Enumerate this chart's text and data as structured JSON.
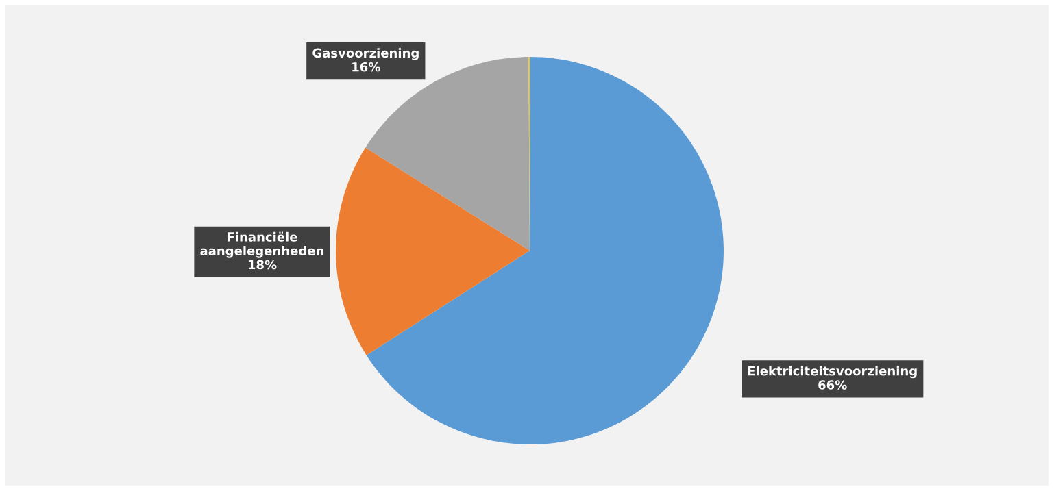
{
  "chart_data": {
    "type": "pie",
    "categories": [
      "Elektriciteitsvoorziening",
      "Financiële\naangelegenheden",
      "Gasvoorziening",
      null
    ],
    "values": [
      66,
      18,
      16,
      0.1
    ],
    "colors": [
      "#5b9bd5",
      "#ed7d31",
      "#a5a5a5",
      "#ffc000"
    ],
    "value_labels": [
      "66%",
      "18%",
      "16%",
      null
    ],
    "legend": false
  }
}
